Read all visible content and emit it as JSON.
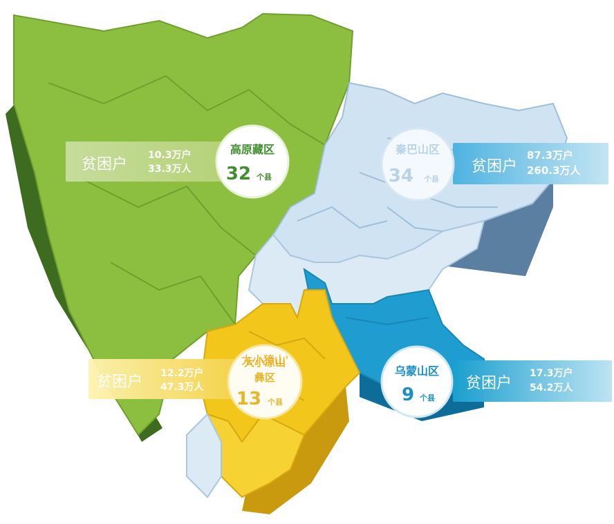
{
  "regions": {
    "plateau": {
      "name": "高原藏区",
      "count": "32",
      "unit": "个县",
      "stat_label": "贫困户",
      "households": "10.3万户",
      "people": "33.3万人",
      "color": "#8cbf3f"
    },
    "qinba": {
      "name": "秦巴山区",
      "count": "34",
      "unit": "个县",
      "stat_label": "贫困户",
      "households": "87.3万户",
      "people": "260.3万人",
      "color": "#cfe3f2"
    },
    "daxiaoliang": {
      "name_line1": "大小凉山",
      "name_line2": "彝区",
      "count": "13",
      "unit": "个县",
      "stat_label": "贫困户",
      "households": "12.2万户",
      "people": "47.3万人",
      "color": "#f2c61a"
    },
    "wumeng": {
      "name": "乌蒙山区",
      "count": "9",
      "unit": "个县",
      "stat_label": "贫困户",
      "households": "17.3万户",
      "people": "54.2万人",
      "color": "#1f9dd1"
    }
  },
  "overlay_text": "尢小獐山'"
}
